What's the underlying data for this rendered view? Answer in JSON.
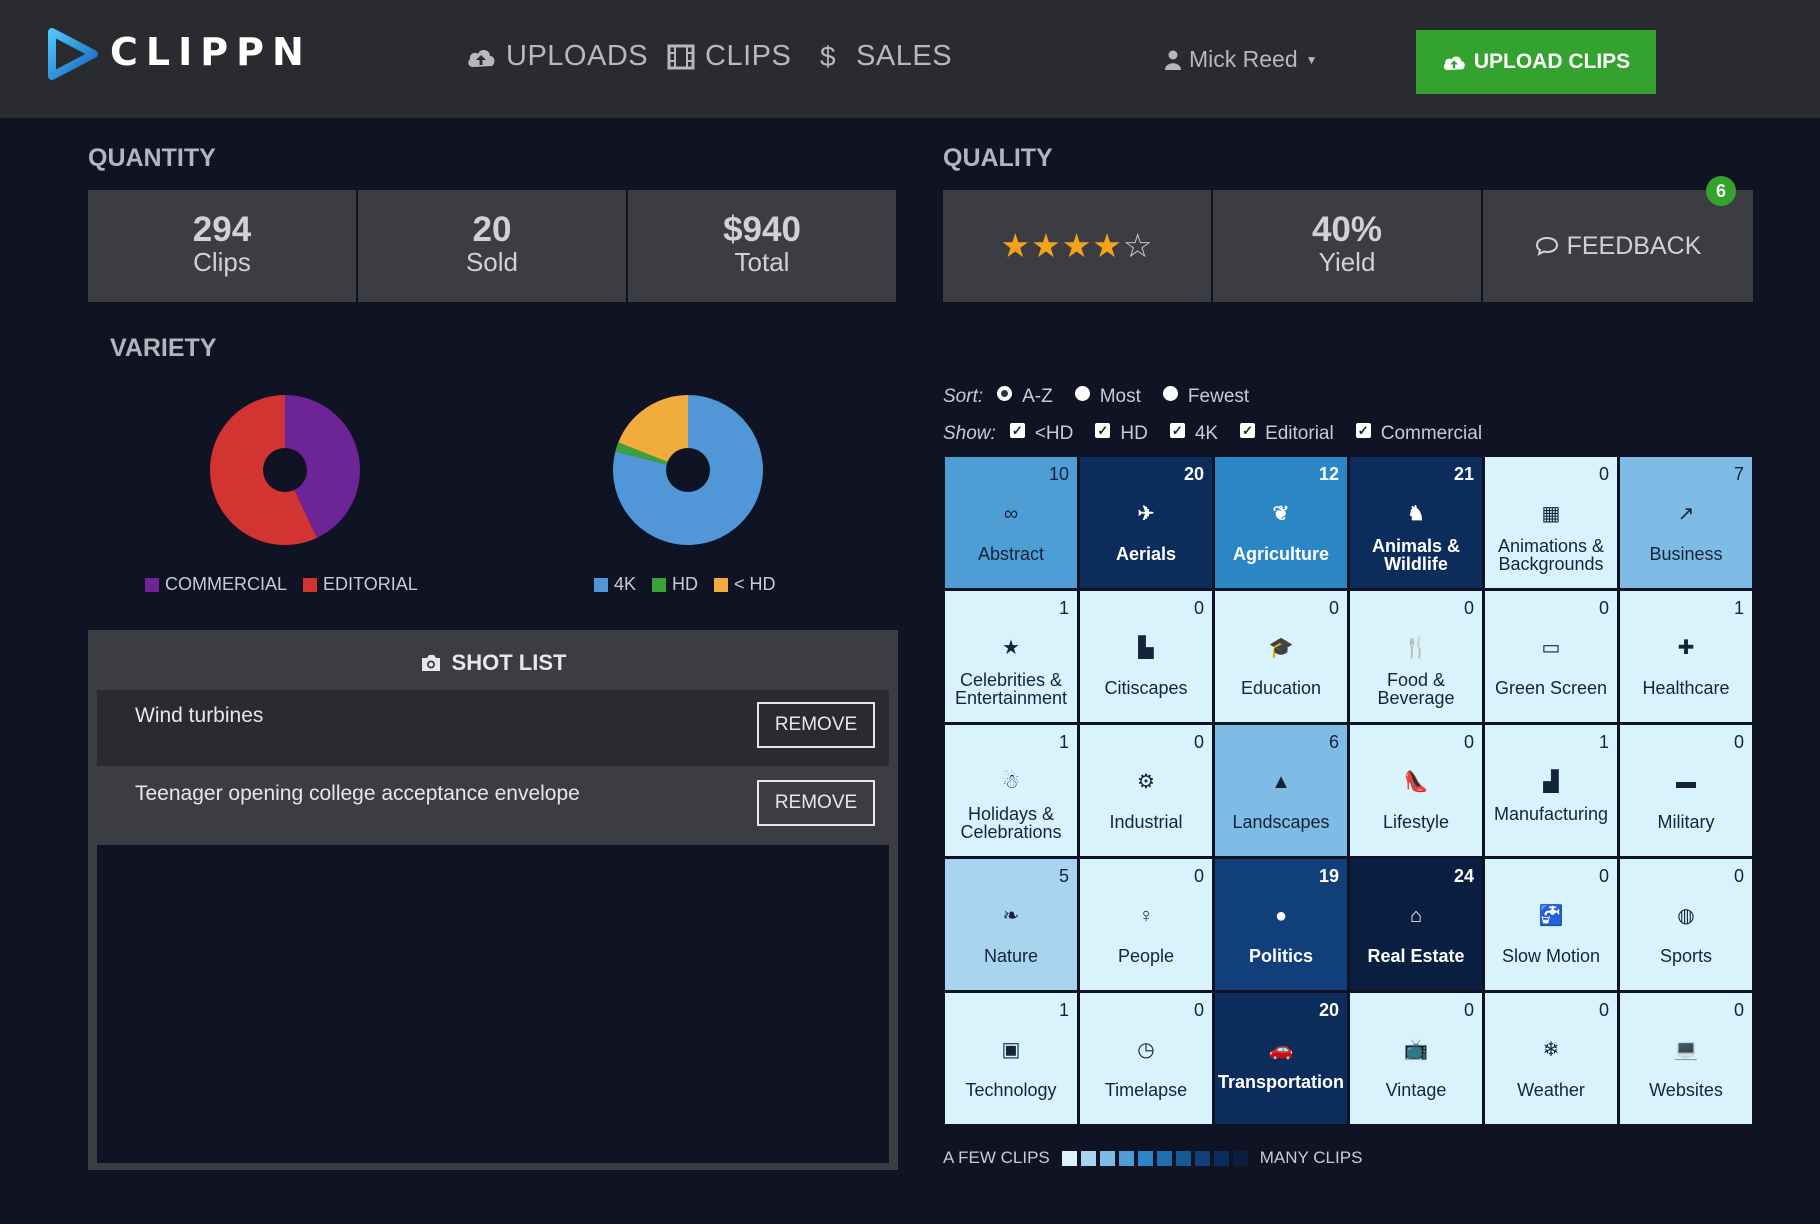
{
  "header": {
    "logo_text": "CLIPPN",
    "nav": [
      {
        "label": "UPLOADS",
        "icon": "cloud-upload-icon"
      },
      {
        "label": "CLIPS",
        "icon": "film-icon"
      },
      {
        "label": "SALES",
        "icon": "dollar-icon"
      }
    ],
    "user": "Mick Reed",
    "upload_button": "UPLOAD CLIPS"
  },
  "quantity": {
    "title": "QUANTITY",
    "stats": [
      {
        "value": "294",
        "label": "Clips"
      },
      {
        "value": "20",
        "label": "Sold"
      },
      {
        "value": "$940",
        "label": "Total"
      }
    ]
  },
  "quality": {
    "title": "QUALITY",
    "rating": 4,
    "rating_max": 5,
    "yield_value": "40%",
    "yield_label": "Yield",
    "feedback_label": "FEEDBACK",
    "feedback_count": "6"
  },
  "variety": {
    "title": "VARIETY",
    "usage_legend": [
      {
        "label": "COMMERCIAL",
        "color": "#6c2496"
      },
      {
        "label": "EDITORIAL",
        "color": "#d23431"
      }
    ],
    "resolution_legend": [
      {
        "label": "4K",
        "color": "#5197d7"
      },
      {
        "label": "HD",
        "color": "#3aa23a"
      },
      {
        "label": "< HD",
        "color": "#f0ac3c"
      }
    ]
  },
  "chart_data": [
    {
      "type": "pie",
      "categories": [
        "COMMERCIAL",
        "EDITORIAL"
      ],
      "values": [
        43,
        57
      ],
      "colors": [
        "#6c2496",
        "#d23431"
      ]
    },
    {
      "type": "pie",
      "categories": [
        "4K",
        "HD",
        "< HD"
      ],
      "values": [
        79,
        2,
        19
      ],
      "colors": [
        "#5197d7",
        "#3aa23a",
        "#f0ac3c"
      ]
    }
  ],
  "shot_list": {
    "title": "SHOT LIST",
    "items": [
      {
        "text": "Wind turbines",
        "button": "REMOVE"
      },
      {
        "text": "Teenager opening college acceptance envelope",
        "button": "REMOVE"
      }
    ]
  },
  "filters": {
    "sort_label": "Sort:",
    "sort_options": [
      "A-Z",
      "Most",
      "Fewest"
    ],
    "sort_selected": "A-Z",
    "show_label": "Show:",
    "show_options": [
      "<HD",
      "HD",
      "4K",
      "Editorial",
      "Commercial"
    ]
  },
  "categories": [
    {
      "name": "Abstract",
      "count": 10,
      "icon": "infinity-icon",
      "glyph": "∞"
    },
    {
      "name": "Aerials",
      "count": 20,
      "icon": "plane-icon",
      "glyph": "✈"
    },
    {
      "name": "Agriculture",
      "count": 12,
      "icon": "leaf-plant-icon",
      "glyph": "❦"
    },
    {
      "name": "Animals & Wildlife",
      "count": 21,
      "icon": "dog-icon",
      "glyph": "♞"
    },
    {
      "name": "Animations & Backgrounds",
      "count": 0,
      "icon": "film-icon",
      "glyph": "▦"
    },
    {
      "name": "Business",
      "count": 7,
      "icon": "line-chart-icon",
      "glyph": "↗"
    },
    {
      "name": "Celebrities & Entertainment",
      "count": 1,
      "icon": "star-icon",
      "glyph": "★"
    },
    {
      "name": "Citiscapes",
      "count": 0,
      "icon": "city-icon",
      "glyph": "▙"
    },
    {
      "name": "Education",
      "count": 0,
      "icon": "graduation-cap-icon",
      "glyph": "🎓"
    },
    {
      "name": "Food & Beverage",
      "count": 0,
      "icon": "fork-knife-icon",
      "glyph": "🍴"
    },
    {
      "name": "Green Screen",
      "count": 0,
      "icon": "presentation-screen-icon",
      "glyph": "▭"
    },
    {
      "name": "Healthcare",
      "count": 1,
      "icon": "medical-kit-icon",
      "glyph": "✚"
    },
    {
      "name": "Holidays & Celebrations",
      "count": 1,
      "icon": "snowman-icon",
      "glyph": "☃"
    },
    {
      "name": "Industrial",
      "count": 0,
      "icon": "forklift-icon",
      "glyph": "⚙"
    },
    {
      "name": "Landscapes",
      "count": 6,
      "icon": "mountain-icon",
      "glyph": "▲"
    },
    {
      "name": "Lifestyle",
      "count": 0,
      "icon": "high-heel-icon",
      "glyph": "👠"
    },
    {
      "name": "Manufacturing",
      "count": 1,
      "icon": "factory-icon",
      "glyph": "▟"
    },
    {
      "name": "Military",
      "count": 0,
      "icon": "tank-icon",
      "glyph": "▬"
    },
    {
      "name": "Nature",
      "count": 5,
      "icon": "leaf-icon",
      "glyph": "❧"
    },
    {
      "name": "People",
      "count": 0,
      "icon": "female-icon",
      "glyph": "♀"
    },
    {
      "name": "Politics",
      "count": 19,
      "icon": "globe-icon",
      "glyph": "●"
    },
    {
      "name": "Real Estate",
      "count": 24,
      "icon": "house-icon",
      "glyph": "⌂"
    },
    {
      "name": "Slow Motion",
      "count": 0,
      "icon": "faucet-icon",
      "glyph": "🚰"
    },
    {
      "name": "Sports",
      "count": 0,
      "icon": "basketball-icon",
      "glyph": "◍"
    },
    {
      "name": "Technology",
      "count": 1,
      "icon": "chip-icon",
      "glyph": "▣"
    },
    {
      "name": "Timelapse",
      "count": 0,
      "icon": "clock-icon",
      "glyph": "◷"
    },
    {
      "name": "Transportation",
      "count": 20,
      "icon": "car-icon",
      "glyph": "🚗"
    },
    {
      "name": "Vintage",
      "count": 0,
      "icon": "tv-icon",
      "glyph": "📺"
    },
    {
      "name": "Weather",
      "count": 0,
      "icon": "snowflake-icon",
      "glyph": "❄"
    },
    {
      "name": "Websites",
      "count": 0,
      "icon": "laptop-icon",
      "glyph": "💻"
    }
  ],
  "scale_legend": {
    "low_label": "A FEW CLIPS",
    "high_label": "MANY CLIPS",
    "colors": [
      "#d9f3fc",
      "#a8d4ef",
      "#7ebce6",
      "#4e9ed5",
      "#2b86c6",
      "#1d6fb0",
      "#155a98",
      "#103f79",
      "#0c2c5c",
      "#0a1e42"
    ]
  },
  "colors": {
    "accent_green": "#34a22f",
    "background": "#0f1323",
    "panel": "#3c3d42"
  }
}
